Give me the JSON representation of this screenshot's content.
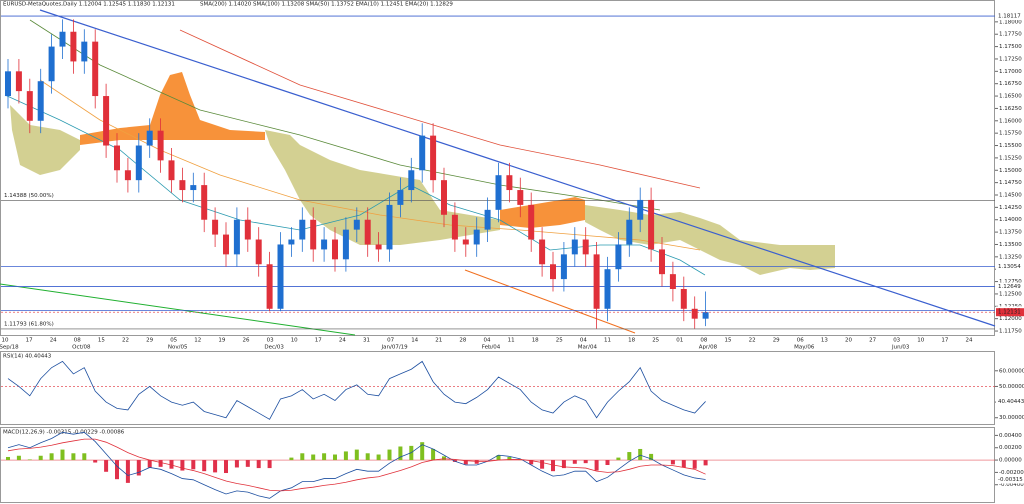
{
  "header": "EURUSD-MetaQuotes,Daily  1.12004 1.12545 1.11830 1.12131",
  "indicators": "SMA(200) 1.14020  SMA(100) 1.13208  SMA(50) 1.13752  EMA(10) 1.12451  EMA(20) 1.12829",
  "chart_data": [
    {
      "type": "candlestick",
      "up_color": "#1f6fd0",
      "down_color": "#e0303a",
      "candles": {
        "open": [
          1.165,
          1.17,
          1.166,
          1.16,
          1.168,
          1.175,
          1.178,
          1.172,
          1.176,
          1.165,
          1.155,
          1.15,
          1.148,
          1.155,
          1.158,
          1.152,
          1.148,
          1.146,
          1.147,
          1.14,
          1.137,
          1.133,
          1.14,
          1.136,
          1.131,
          1.122,
          1.135,
          1.136,
          1.14,
          1.134,
          1.136,
          1.132,
          1.138,
          1.14,
          1.135,
          1.134,
          1.143,
          1.146,
          1.15,
          1.157,
          1.148,
          1.141,
          1.136,
          1.135,
          1.138,
          1.142,
          1.149,
          1.146,
          1.143,
          1.136,
          1.131,
          1.128,
          1.133,
          1.136,
          1.133,
          1.122,
          1.13,
          1.135,
          1.14,
          1.144,
          1.134,
          1.129,
          1.126,
          1.122,
          1.12
        ],
        "high": [
          1.1725,
          1.1725,
          1.1685,
          1.1705,
          1.1775,
          1.1805,
          1.1805,
          1.1785,
          1.1785,
          1.1675,
          1.1575,
          1.1525,
          1.1575,
          1.1605,
          1.1605,
          1.1545,
          1.1505,
          1.1495,
          1.1495,
          1.1425,
          1.1395,
          1.1425,
          1.1425,
          1.1385,
          1.1335,
          1.1375,
          1.1385,
          1.1425,
          1.1425,
          1.1385,
          1.1385,
          1.1405,
          1.1425,
          1.1425,
          1.1375,
          1.1455,
          1.1485,
          1.1525,
          1.1595,
          1.1595,
          1.1505,
          1.1435,
          1.1385,
          1.1405,
          1.1445,
          1.1515,
          1.1515,
          1.1485,
          1.1455,
          1.1385,
          1.1335,
          1.1355,
          1.1385,
          1.1385,
          1.1355,
          1.1325,
          1.1375,
          1.1425,
          1.1465,
          1.1465,
          1.1365,
          1.1315,
          1.1285,
          1.1245,
          1.1255
        ],
        "low": [
          1.1625,
          1.1635,
          1.1575,
          1.1575,
          1.1655,
          1.1725,
          1.1695,
          1.1695,
          1.1625,
          1.1525,
          1.1475,
          1.1455,
          1.1455,
          1.1525,
          1.1495,
          1.1455,
          1.1435,
          1.1435,
          1.1375,
          1.1345,
          1.1305,
          1.1305,
          1.1335,
          1.1285,
          1.1215,
          1.1215,
          1.1325,
          1.1335,
          1.1315,
          1.1315,
          1.1295,
          1.1295,
          1.1355,
          1.1325,
          1.1315,
          1.1315,
          1.1405,
          1.1435,
          1.1475,
          1.1455,
          1.1385,
          1.1335,
          1.1325,
          1.1325,
          1.1355,
          1.1395,
          1.1435,
          1.1405,
          1.1335,
          1.1285,
          1.1255,
          1.1255,
          1.1305,
          1.1305,
          1.118,
          1.1195,
          1.1275,
          1.1325,
          1.1375,
          1.1315,
          1.1265,
          1.1235,
          1.1195,
          1.118,
          1.1185
        ],
        "close": [
          1.17,
          1.166,
          1.16,
          1.168,
          1.175,
          1.178,
          1.172,
          1.176,
          1.165,
          1.155,
          1.15,
          1.148,
          1.155,
          1.158,
          1.152,
          1.148,
          1.146,
          1.147,
          1.14,
          1.137,
          1.133,
          1.14,
          1.136,
          1.131,
          1.122,
          1.135,
          1.136,
          1.14,
          1.134,
          1.136,
          1.132,
          1.138,
          1.14,
          1.135,
          1.134,
          1.143,
          1.146,
          1.15,
          1.157,
          1.148,
          1.141,
          1.136,
          1.135,
          1.138,
          1.142,
          1.149,
          1.146,
          1.143,
          1.136,
          1.131,
          1.128,
          1.133,
          1.136,
          1.133,
          1.122,
          1.13,
          1.135,
          1.14,
          1.144,
          1.134,
          1.129,
          1.126,
          1.122,
          1.12,
          1.12131
        ]
      },
      "ylim": [
        1.1167,
        1.1828
      ],
      "yticks": [
        {
          "value": 1.1175,
          "label": "1.11750"
        },
        {
          "value": 1.12,
          "label": "1.12000"
        },
        {
          "value": 1.1225,
          "label": "1.12250"
        },
        {
          "value": 1.125,
          "label": "1.12500"
        },
        {
          "value": 1.1275,
          "label": "1.12750"
        },
        {
          "value": 1.13,
          "label": "1.13000"
        },
        {
          "value": 1.1325,
          "label": "1.13250"
        },
        {
          "value": 1.135,
          "label": "1.13500"
        },
        {
          "value": 1.1375,
          "label": "1.13750"
        },
        {
          "value": 1.14,
          "label": "1.14000"
        },
        {
          "value": 1.1425,
          "label": "1.14250"
        },
        {
          "value": 1.145,
          "label": "1.14500"
        },
        {
          "value": 1.1475,
          "label": "1.14750"
        },
        {
          "value": 1.15,
          "label": "1.15000"
        },
        {
          "value": 1.1525,
          "label": "1.15250"
        },
        {
          "value": 1.155,
          "label": "1.15500"
        },
        {
          "value": 1.1575,
          "label": "1.15750"
        },
        {
          "value": 1.16,
          "label": "1.16000"
        },
        {
          "value": 1.1625,
          "label": "1.16250"
        },
        {
          "value": 1.165,
          "label": "1.16500"
        },
        {
          "value": 1.1675,
          "label": "1.16750"
        },
        {
          "value": 1.17,
          "label": "1.17000"
        },
        {
          "value": 1.1725,
          "label": "1.17250"
        },
        {
          "value": 1.175,
          "label": "1.17500"
        },
        {
          "value": 1.1775,
          "label": "1.17750"
        },
        {
          "value": 1.18,
          "label": "1.18000"
        }
      ],
      "levels": [
        1.18117,
        1.13054,
        1.12649,
        1.12168
      ],
      "fib_levels": [
        {
          "value": 1.14388,
          "label": "1.14388 (50.00%)"
        },
        {
          "value": 1.11793,
          "label": "1.11793 (61.80%)"
        }
      ],
      "x_axis": [
        {
          "day": "10",
          "month": "Sep/18"
        },
        {
          "day": "17"
        },
        {
          "day": "24"
        },
        {
          "day": "08",
          "month": "Oct/08"
        },
        {
          "day": "15"
        },
        {
          "day": "22"
        },
        {
          "day": "29"
        },
        {
          "day": "05",
          "month": "Nov/05"
        },
        {
          "day": "12"
        },
        {
          "day": "19"
        },
        {
          "day": "26"
        },
        {
          "day": "03",
          "month": "Dec/03"
        },
        {
          "day": "10"
        },
        {
          "day": "17"
        },
        {
          "day": "24"
        },
        {
          "day": "31"
        },
        {
          "day": "07",
          "month": "Jan/07/19"
        },
        {
          "day": "14"
        },
        {
          "day": "21"
        },
        {
          "day": "28"
        },
        {
          "day": "04",
          "month": "Feb/04"
        },
        {
          "day": "11"
        },
        {
          "day": "18"
        },
        {
          "day": "25"
        },
        {
          "day": "04",
          "month": "Mar/04"
        },
        {
          "day": "11"
        },
        {
          "day": "18"
        },
        {
          "day": "25"
        },
        {
          "day": "01"
        },
        {
          "day": "08",
          "month": "Apr/08"
        },
        {
          "day": "15"
        },
        {
          "day": "22"
        },
        {
          "day": "29"
        },
        {
          "day": "06",
          "month": "May/06"
        },
        {
          "day": "13"
        },
        {
          "day": "20"
        },
        {
          "day": "27"
        },
        {
          "day": "03",
          "month": "Jun/03"
        },
        {
          "day": "10"
        },
        {
          "day": "17"
        },
        {
          "day": "24"
        }
      ]
    },
    {
      "type": "line",
      "title": "RSI(14) 40.40443",
      "color": "#1d4fa0",
      "values": [
        55,
        50,
        44,
        55,
        62,
        66,
        58,
        62,
        47,
        40,
        36,
        35,
        45,
        50,
        44,
        40,
        38,
        40,
        34,
        32,
        30,
        41,
        37,
        33,
        29,
        42,
        44,
        48,
        42,
        45,
        41,
        48,
        51,
        45,
        44,
        55,
        58,
        61,
        66,
        53,
        45,
        40,
        39,
        43,
        48,
        56,
        52,
        48,
        40,
        35,
        33,
        40,
        44,
        41,
        30,
        40,
        47,
        53,
        62,
        47,
        41,
        38,
        35,
        33,
        40.40443
      ],
      "level": 50,
      "ylim": [
        26,
        72
      ],
      "yticks": [
        {
          "value": 60,
          "label": "60.00000"
        },
        {
          "value": 50,
          "label": "50.00000"
        },
        {
          "value": 40,
          "label": "40.00000"
        },
        {
          "value": 30,
          "label": "30.00000"
        }
      ]
    },
    {
      "type": "macd",
      "title": "MACD(12,26,9) -0.00315 -0.00229 -0.00086",
      "series": [
        {
          "color": "#1d4fa0",
          "values": [
            0.002,
            0.0025,
            0.002,
            0.0028,
            0.0035,
            0.0045,
            0.0042,
            0.0045,
            0.003,
            0.001,
            -0.001,
            -0.0025,
            -0.002,
            -0.0012,
            -0.0015,
            -0.0022,
            -0.003,
            -0.0032,
            -0.004,
            -0.0048,
            -0.0055,
            -0.005,
            -0.0052,
            -0.0058,
            -0.0062,
            -0.005,
            -0.0045,
            -0.0035,
            -0.0035,
            -0.003,
            -0.003,
            -0.0022,
            -0.0015,
            -0.0018,
            -0.0018,
            -0.0005,
            0.0005,
            0.0012,
            0.0025,
            0.0018,
            0.0008,
            -0.0002,
            -0.0008,
            -0.0008,
            -0.0002,
            0.0008,
            0.0006,
            0.0002,
            -0.0008,
            -0.0018,
            -0.0026,
            -0.0024,
            -0.0018,
            -0.0018,
            -0.0035,
            -0.0028,
            -0.0015,
            -0.0002,
            0.0008,
            0.0002,
            -0.0008,
            -0.0016,
            -0.0024,
            -0.0029,
            -0.00315
          ]
        },
        {
          "color": "#e0303a",
          "values": [
            0.0015,
            0.0018,
            0.0019,
            0.0021,
            0.0024,
            0.0028,
            0.0031,
            0.0034,
            0.0034,
            0.0029,
            0.0021,
            0.0012,
            0.0005,
            0,
            -0.0004,
            -0.0008,
            -0.0013,
            -0.0017,
            -0.0022,
            -0.0028,
            -0.0034,
            -0.0038,
            -0.0041,
            -0.0045,
            -0.0049,
            -0.005,
            -0.0049,
            -0.0046,
            -0.0044,
            -0.0041,
            -0.0039,
            -0.0036,
            -0.0032,
            -0.0029,
            -0.0027,
            -0.0022,
            -0.0017,
            -0.0011,
            -0.0004,
            0,
            0.0002,
            0.0001,
            -0.0001,
            -0.0002,
            -0.0002,
            0,
            0.0001,
            0.0001,
            -0.0001,
            -0.0004,
            -0.0008,
            -0.0011,
            -0.0012,
            -0.0013,
            -0.0018,
            -0.002,
            -0.0019,
            -0.0015,
            -0.001,
            -0.0008,
            -0.0008,
            -0.0009,
            -0.0012,
            -0.0015,
            -0.00229
          ]
        }
      ],
      "histogram": {
        "up_color": "#7fbf1f",
        "down_color": "#e0304a",
        "values": [
          0.0005,
          0.0007,
          0.0001,
          0.0007,
          0.0011,
          0.0017,
          0.0011,
          0.0011,
          -0.0004,
          -0.0019,
          -0.0031,
          -0.0037,
          -0.0025,
          -0.0012,
          -0.0011,
          -0.0014,
          -0.0017,
          -0.0015,
          -0.0018,
          -0.002,
          -0.0021,
          -0.0012,
          -0.0011,
          -0.0013,
          -0.0013,
          0,
          0.0004,
          0.0011,
          0.0009,
          0.0011,
          0.0009,
          0.0014,
          0.0017,
          0.0011,
          0.0009,
          0.0017,
          0.0022,
          0.0023,
          0.0029,
          0.0018,
          0.0006,
          -0.0003,
          -0.0007,
          -0.0006,
          0,
          0.0008,
          0.0005,
          0.0001,
          -0.0007,
          -0.0014,
          -0.0018,
          -0.0013,
          -0.0006,
          -0.0005,
          -0.0017,
          -0.0008,
          0.0004,
          0.0013,
          0.0018,
          0.001,
          0,
          -0.0007,
          -0.0012,
          -0.0014,
          -0.00086
        ]
      },
      "ylim": [
        -0.0068,
        0.0052
      ],
      "yticks": [
        {
          "value": 0.004,
          "label": "0.00400"
        },
        {
          "value": 0.002,
          "label": "0.00200"
        },
        {
          "value": 0,
          "label": "0.00000"
        },
        {
          "value": -0.002,
          "label": "-0.00200"
        },
        {
          "value": -0.004,
          "label": "-0.00400"
        }
      ]
    }
  ]
}
